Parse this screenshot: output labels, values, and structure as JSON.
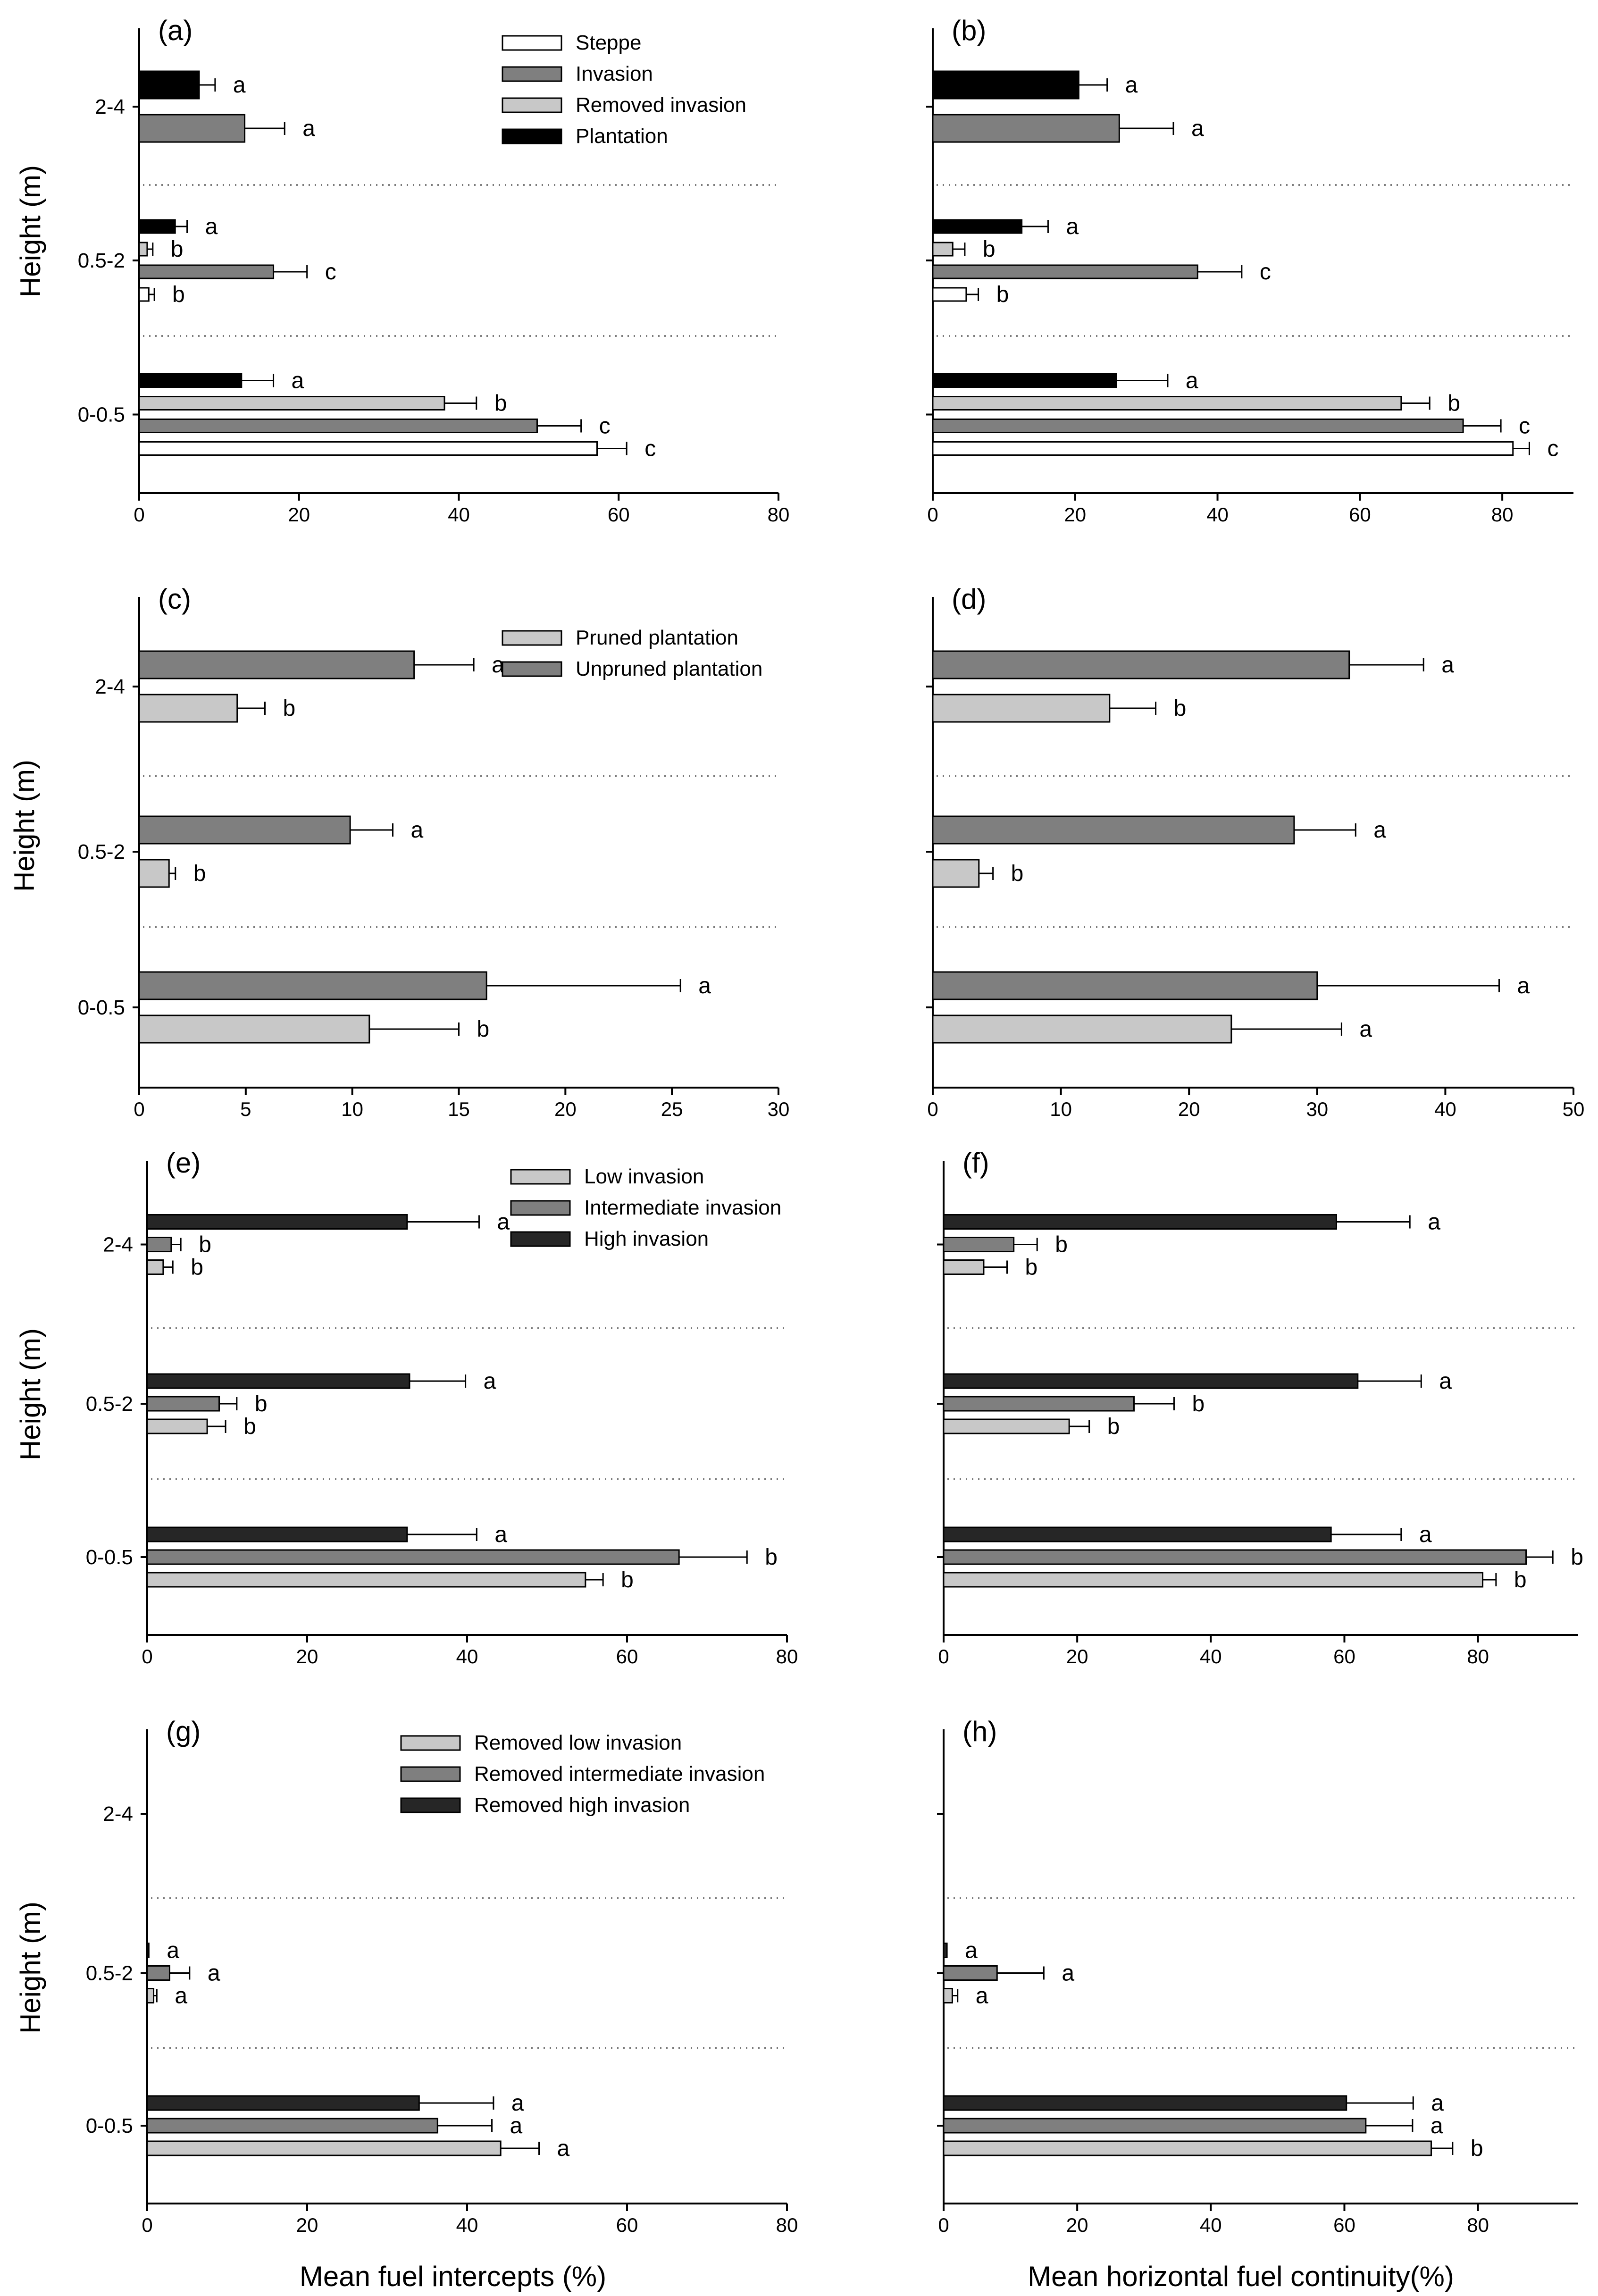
{
  "figure": {
    "ylabel": "Height (m)",
    "xlabel_left": "Mean fuel intercepts (%)",
    "xlabel_right": "Mean horizontal fuel continuity(%)",
    "height_classes": [
      "0-0.5",
      "0.5-2",
      "2-4"
    ]
  },
  "chart_data": [
    {
      "panel": "(a)",
      "type": "bar",
      "orientation": "horizontal",
      "xlabel": "",
      "ylabel": "Height (m)",
      "xlim": [
        0,
        80
      ],
      "xticks": [
        0,
        20,
        40,
        60,
        80
      ],
      "legend": [
        {
          "label": "Steppe",
          "color": "#ffffff"
        },
        {
          "label": "Invasion",
          "color": "#7f7f7f"
        },
        {
          "label": "Removed invasion",
          "color": "#c8c8c8"
        },
        {
          "label": "Plantation",
          "color": "#000000"
        }
      ],
      "groups": [
        {
          "height": "2-4",
          "bars": [
            {
              "series": "Plantation",
              "color": "#000000",
              "value": 7.5,
              "err": 2,
              "letter": "a"
            },
            {
              "series": "Invasion",
              "color": "#7f7f7f",
              "value": 13.2,
              "err": 5,
              "letter": "a"
            }
          ]
        },
        {
          "height": "0.5-2",
          "bars": [
            {
              "series": "Plantation",
              "color": "#000000",
              "value": 4.5,
              "err": 1.5,
              "letter": "a"
            },
            {
              "series": "Removed invasion",
              "color": "#c8c8c8",
              "value": 1.0,
              "err": 0.7,
              "letter": "b"
            },
            {
              "series": "Invasion",
              "color": "#7f7f7f",
              "value": 16.8,
              "err": 4.2,
              "letter": "c"
            },
            {
              "series": "Steppe",
              "color": "#ffffff",
              "value": 1.2,
              "err": 0.7,
              "letter": "b"
            }
          ]
        },
        {
          "height": "0-0.5",
          "bars": [
            {
              "series": "Plantation",
              "color": "#000000",
              "value": 12.8,
              "err": 4,
              "letter": "a"
            },
            {
              "series": "Removed invasion",
              "color": "#c8c8c8",
              "value": 38.2,
              "err": 4,
              "letter": "b"
            },
            {
              "series": "Invasion",
              "color": "#7f7f7f",
              "value": 49.8,
              "err": 5.5,
              "letter": "c"
            },
            {
              "series": "Steppe",
              "color": "#ffffff",
              "value": 57.3,
              "err": 3.7,
              "letter": "c"
            }
          ]
        }
      ]
    },
    {
      "panel": "(b)",
      "type": "bar",
      "orientation": "horizontal",
      "xlabel": "",
      "ylabel": "",
      "xlim": [
        0,
        90
      ],
      "xticks": [
        0,
        20,
        40,
        60,
        80
      ],
      "legend": [],
      "groups": [
        {
          "height": "2-4",
          "bars": [
            {
              "series": "Plantation",
              "color": "#000000",
              "value": 20.5,
              "err": 4,
              "letter": "a"
            },
            {
              "series": "Invasion",
              "color": "#7f7f7f",
              "value": 26.2,
              "err": 7.6,
              "letter": "a"
            }
          ]
        },
        {
          "height": "0.5-2",
          "bars": [
            {
              "series": "Plantation",
              "color": "#000000",
              "value": 12.5,
              "err": 3.7,
              "letter": "a"
            },
            {
              "series": "Removed invasion",
              "color": "#c8c8c8",
              "value": 2.8,
              "err": 1.7,
              "letter": "b"
            },
            {
              "series": "Invasion",
              "color": "#7f7f7f",
              "value": 37.2,
              "err": 6.2,
              "letter": "c"
            },
            {
              "series": "Steppe",
              "color": "#ffffff",
              "value": 4.7,
              "err": 1.7,
              "letter": "b"
            }
          ]
        },
        {
          "height": "0-0.5",
          "bars": [
            {
              "series": "Plantation",
              "color": "#000000",
              "value": 25.8,
              "err": 7.2,
              "letter": "a"
            },
            {
              "series": "Removed invasion",
              "color": "#c8c8c8",
              "value": 65.8,
              "err": 4,
              "letter": "b"
            },
            {
              "series": "Invasion",
              "color": "#7f7f7f",
              "value": 74.5,
              "err": 5.3,
              "letter": "c"
            },
            {
              "series": "Steppe",
              "color": "#ffffff",
              "value": 81.5,
              "err": 2.3,
              "letter": "c"
            }
          ]
        }
      ]
    },
    {
      "panel": "(c)",
      "type": "bar",
      "orientation": "horizontal",
      "xlabel": "",
      "ylabel": "Height (m)",
      "xlim": [
        0,
        30
      ],
      "xticks": [
        0,
        5,
        10,
        15,
        20,
        25,
        30
      ],
      "legend": [
        {
          "label": "Pruned plantation",
          "color": "#c8c8c8"
        },
        {
          "label": "Unpruned plantation",
          "color": "#7f7f7f"
        }
      ],
      "groups": [
        {
          "height": "2-4",
          "bars": [
            {
              "series": "Unpruned plantation",
              "color": "#7f7f7f",
              "value": 12.9,
              "err": 2.8,
              "letter": "a"
            },
            {
              "series": "Pruned plantation",
              "color": "#c8c8c8",
              "value": 4.6,
              "err": 1.3,
              "letter": "b"
            }
          ]
        },
        {
          "height": "0.5-2",
          "bars": [
            {
              "series": "Unpruned plantation",
              "color": "#7f7f7f",
              "value": 9.9,
              "err": 2.0,
              "letter": "a"
            },
            {
              "series": "Pruned plantation",
              "color": "#c8c8c8",
              "value": 1.4,
              "err": 0.3,
              "letter": "b"
            }
          ]
        },
        {
          "height": "0-0.5",
          "bars": [
            {
              "series": "Unpruned plantation",
              "color": "#7f7f7f",
              "value": 16.3,
              "err": 9.1,
              "letter": "a"
            },
            {
              "series": "Pruned plantation",
              "color": "#c8c8c8",
              "value": 10.8,
              "err": 4.2,
              "letter": "b"
            }
          ]
        }
      ]
    },
    {
      "panel": "(d)",
      "type": "bar",
      "orientation": "horizontal",
      "xlabel": "",
      "ylabel": "",
      "xlim": [
        0,
        50
      ],
      "xticks": [
        0,
        10,
        20,
        30,
        40,
        50
      ],
      "legend": [],
      "groups": [
        {
          "height": "2-4",
          "bars": [
            {
              "series": "Unpruned plantation",
              "color": "#7f7f7f",
              "value": 32.5,
              "err": 5.8,
              "letter": "a"
            },
            {
              "series": "Pruned plantation",
              "color": "#c8c8c8",
              "value": 13.8,
              "err": 3.6,
              "letter": "b"
            }
          ]
        },
        {
          "height": "0.5-2",
          "bars": [
            {
              "series": "Unpruned plantation",
              "color": "#7f7f7f",
              "value": 28.2,
              "err": 4.8,
              "letter": "a"
            },
            {
              "series": "Pruned plantation",
              "color": "#c8c8c8",
              "value": 3.6,
              "err": 1.1,
              "letter": "b"
            }
          ]
        },
        {
          "height": "0-0.5",
          "bars": [
            {
              "series": "Unpruned plantation",
              "color": "#7f7f7f",
              "value": 30.0,
              "err": 14.2,
              "letter": "a"
            },
            {
              "series": "Pruned plantation",
              "color": "#c8c8c8",
              "value": 23.3,
              "err": 8.6,
              "letter": "a"
            }
          ]
        }
      ]
    },
    {
      "panel": "(e)",
      "type": "bar",
      "orientation": "horizontal",
      "xlabel": "",
      "ylabel": "Height (m)",
      "xlim": [
        0,
        80
      ],
      "xticks": [
        0,
        20,
        40,
        60,
        80
      ],
      "legend": [
        {
          "label": "Low invasion",
          "color": "#c8c8c8"
        },
        {
          "label": "Intermediate invasion",
          "color": "#7f7f7f"
        },
        {
          "label": "High invasion",
          "color": "#262626"
        }
      ],
      "groups": [
        {
          "height": "2-4",
          "bars": [
            {
              "series": "High invasion",
              "color": "#262626",
              "value": 32.5,
              "err": 9,
              "letter": "a"
            },
            {
              "series": "Intermediate invasion",
              "color": "#7f7f7f",
              "value": 3.0,
              "err": 1.2,
              "letter": "b"
            },
            {
              "series": "Low invasion",
              "color": "#c8c8c8",
              "value": 2.0,
              "err": 1.2,
              "letter": "b"
            }
          ]
        },
        {
          "height": "0.5-2",
          "bars": [
            {
              "series": "High invasion",
              "color": "#262626",
              "value": 32.8,
              "err": 7,
              "letter": "a"
            },
            {
              "series": "Intermediate invasion",
              "color": "#7f7f7f",
              "value": 9.0,
              "err": 2.2,
              "letter": "b"
            },
            {
              "series": "Low invasion",
              "color": "#c8c8c8",
              "value": 7.5,
              "err": 2.3,
              "letter": "b"
            }
          ]
        },
        {
          "height": "0-0.5",
          "bars": [
            {
              "series": "High invasion",
              "color": "#262626",
              "value": 32.5,
              "err": 8.7,
              "letter": "a"
            },
            {
              "series": "Intermediate invasion",
              "color": "#7f7f7f",
              "value": 66.5,
              "err": 8.5,
              "letter": "b"
            },
            {
              "series": "Low invasion",
              "color": "#c8c8c8",
              "value": 54.8,
              "err": 2.2,
              "letter": "b"
            }
          ]
        }
      ]
    },
    {
      "panel": "(f)",
      "type": "bar",
      "orientation": "horizontal",
      "xlabel": "",
      "ylabel": "",
      "xlim": [
        0,
        95
      ],
      "xticks": [
        0,
        20,
        40,
        60,
        80
      ],
      "legend": [],
      "groups": [
        {
          "height": "2-4",
          "bars": [
            {
              "series": "High invasion",
              "color": "#262626",
              "value": 58.8,
              "err": 11,
              "letter": "a"
            },
            {
              "series": "Intermediate invasion",
              "color": "#7f7f7f",
              "value": 10.5,
              "err": 3.5,
              "letter": "b"
            },
            {
              "series": "Low invasion",
              "color": "#c8c8c8",
              "value": 6.0,
              "err": 3.5,
              "letter": "b"
            }
          ]
        },
        {
          "height": "0.5-2",
          "bars": [
            {
              "series": "High invasion",
              "color": "#262626",
              "value": 62.0,
              "err": 9.5,
              "letter": "a"
            },
            {
              "series": "Intermediate invasion",
              "color": "#7f7f7f",
              "value": 28.5,
              "err": 6,
              "letter": "b"
            },
            {
              "series": "Low invasion",
              "color": "#c8c8c8",
              "value": 18.8,
              "err": 3,
              "letter": "b"
            }
          ]
        },
        {
          "height": "0-0.5",
          "bars": [
            {
              "series": "High invasion",
              "color": "#262626",
              "value": 58.0,
              "err": 10.5,
              "letter": "a"
            },
            {
              "series": "Intermediate invasion",
              "color": "#7f7f7f",
              "value": 87.2,
              "err": 4,
              "letter": "b"
            },
            {
              "series": "Low invasion",
              "color": "#c8c8c8",
              "value": 80.7,
              "err": 2,
              "letter": "b"
            }
          ]
        }
      ]
    },
    {
      "panel": "(g)",
      "type": "bar",
      "orientation": "horizontal",
      "xlabel": "Mean fuel intercepts (%)",
      "ylabel": "Height (m)",
      "xlim": [
        0,
        80
      ],
      "xticks": [
        0,
        20,
        40,
        60,
        80
      ],
      "legend": [
        {
          "label": "Removed low invasion",
          "color": "#c8c8c8"
        },
        {
          "label": "Removed intermediate invasion",
          "color": "#7f7f7f"
        },
        {
          "label": "Removed high invasion",
          "color": "#262626"
        }
      ],
      "groups": [
        {
          "height": "2-4",
          "bars": []
        },
        {
          "height": "0.5-2",
          "bars": [
            {
              "series": "Removed high invasion",
              "color": "#262626",
              "value": 0.2,
              "err": 0,
              "letter": "a"
            },
            {
              "series": "Removed intermediate invasion",
              "color": "#7f7f7f",
              "value": 2.8,
              "err": 2.5,
              "letter": "a"
            },
            {
              "series": "Removed low invasion",
              "color": "#c8c8c8",
              "value": 0.8,
              "err": 0.4,
              "letter": "a"
            }
          ]
        },
        {
          "height": "0-0.5",
          "bars": [
            {
              "series": "Removed high invasion",
              "color": "#262626",
              "value": 34.0,
              "err": 9.3,
              "letter": "a"
            },
            {
              "series": "Removed intermediate invasion",
              "color": "#7f7f7f",
              "value": 36.3,
              "err": 6.8,
              "letter": "a"
            },
            {
              "series": "Removed low invasion",
              "color": "#c8c8c8",
              "value": 44.2,
              "err": 4.8,
              "letter": "a"
            }
          ]
        }
      ]
    },
    {
      "panel": "(h)",
      "type": "bar",
      "orientation": "horizontal",
      "xlabel": "Mean horizontal fuel continuity(%)",
      "ylabel": "",
      "xlim": [
        0,
        95
      ],
      "xticks": [
        0,
        20,
        40,
        60,
        80
      ],
      "legend": [],
      "groups": [
        {
          "height": "2-4",
          "bars": []
        },
        {
          "height": "0.5-2",
          "bars": [
            {
              "series": "Removed high invasion",
              "color": "#262626",
              "value": 0.5,
              "err": 0,
              "letter": "a"
            },
            {
              "series": "Removed intermediate invasion",
              "color": "#7f7f7f",
              "value": 8.0,
              "err": 7,
              "letter": "a"
            },
            {
              "series": "Removed low invasion",
              "color": "#c8c8c8",
              "value": 1.3,
              "err": 0.8,
              "letter": "a"
            }
          ]
        },
        {
          "height": "0-0.5",
          "bars": [
            {
              "series": "Removed high invasion",
              "color": "#262626",
              "value": 60.3,
              "err": 10,
              "letter": "a"
            },
            {
              "series": "Removed intermediate invasion",
              "color": "#7f7f7f",
              "value": 63.2,
              "err": 7,
              "letter": "a"
            },
            {
              "series": "Removed low invasion",
              "color": "#c8c8c8",
              "value": 73.0,
              "err": 3.2,
              "letter": "b"
            }
          ]
        }
      ]
    }
  ]
}
